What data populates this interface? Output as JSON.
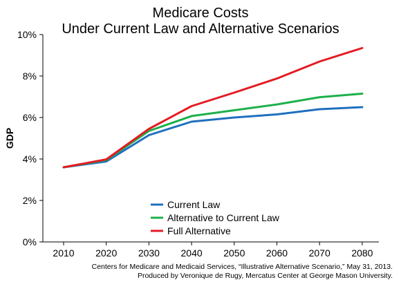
{
  "chart_data": {
    "type": "line",
    "title": "Medicare Costs",
    "subtitle": "Under Current Law and Alternative Scenarios",
    "xlabel": "",
    "ylabel": "GDP",
    "x": [
      2010,
      2020,
      2030,
      2040,
      2050,
      2060,
      2070,
      2080
    ],
    "x_ticks": [
      "2010",
      "2020",
      "2030",
      "2040",
      "2050",
      "2060",
      "2070",
      "2080"
    ],
    "ylim": [
      0,
      10
    ],
    "y_ticks": [
      0,
      2,
      4,
      6,
      8,
      10
    ],
    "y_tick_labels": [
      "0%",
      "2%",
      "4%",
      "6%",
      "8%",
      "10%"
    ],
    "grid": false,
    "legend_position": "bottom-center",
    "series": [
      {
        "name": "Current Law",
        "color": "#1f6fbf",
        "values": [
          3.6,
          3.88,
          5.15,
          5.8,
          6.0,
          6.15,
          6.4,
          6.5
        ]
      },
      {
        "name": "Alternative to Current Law",
        "color": "#1db04b",
        "values": [
          3.6,
          3.95,
          5.35,
          6.07,
          6.35,
          6.63,
          6.98,
          7.15
        ]
      },
      {
        "name": "Full Alternative",
        "color": "#e31b23",
        "values": [
          3.6,
          3.98,
          5.45,
          6.55,
          7.2,
          7.88,
          8.7,
          9.35
        ]
      }
    ]
  },
  "source_note": {
    "line1": "Centers for Medicare and Medicaid Services, “Illustrative Alternative Scenario,” May 31, 2013.",
    "line2": "Produced by Veronique de Rugy, Mercatus Center at George Mason University."
  }
}
